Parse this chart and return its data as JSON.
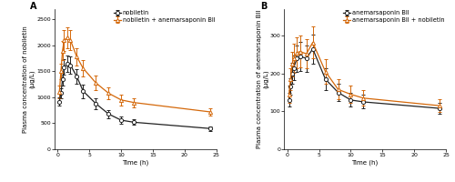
{
  "panel_A": {
    "title": "A",
    "ylabel": "Plasma concentration of nobiletin\n(μg/L)",
    "xlabel": "Time (h)",
    "xlim": [
      -0.5,
      25
    ],
    "ylim": [
      0,
      2700
    ],
    "yticks": [
      0,
      500,
      1000,
      1500,
      2000,
      2500
    ],
    "xticks": [
      0,
      5,
      10,
      15,
      20,
      25
    ],
    "series": {
      "nobiletin": {
        "label": "nobiletin",
        "color": "#222222",
        "marker": "o",
        "x": [
          0.25,
          0.5,
          0.75,
          1.0,
          1.5,
          2.0,
          3.0,
          4.0,
          6.0,
          8.0,
          10.0,
          12.0,
          24.0
        ],
        "y": [
          920,
          1080,
          1350,
          1580,
          1650,
          1620,
          1400,
          1120,
          880,
          680,
          560,
          520,
          400
        ],
        "yerr": [
          80,
          100,
          130,
          150,
          160,
          160,
          140,
          130,
          100,
          80,
          65,
          55,
          45
        ]
      },
      "nobiletin_combo": {
        "label": "nobiletin + anemarsaponin BII",
        "color": "#D4680A",
        "marker": "^",
        "x": [
          0.25,
          0.5,
          0.75,
          1.0,
          1.5,
          2.0,
          3.0,
          4.0,
          6.0,
          8.0,
          10.0,
          12.0,
          24.0
        ],
        "y": [
          1100,
          1500,
          1900,
          2100,
          2150,
          2100,
          1780,
          1560,
          1280,
          1080,
          950,
          900,
          720
        ],
        "yerr": [
          120,
          150,
          180,
          200,
          200,
          190,
          170,
          160,
          140,
          120,
          105,
          90,
          75
        ]
      }
    }
  },
  "panel_B": {
    "title": "B",
    "ylabel": "Plasma concentration of anemarsaponin BII\n(μg/L)",
    "xlabel": "Time (h)",
    "xlim": [
      -0.5,
      25
    ],
    "ylim": [
      0,
      370
    ],
    "yticks": [
      0,
      100,
      200,
      300
    ],
    "xticks": [
      0,
      5,
      10,
      15,
      20,
      25
    ],
    "series": {
      "anemarsaponin": {
        "label": "anemarsaponin BII",
        "color": "#222222",
        "marker": "o",
        "x": [
          0.25,
          0.5,
          0.75,
          1.0,
          1.5,
          2.0,
          3.0,
          4.0,
          6.0,
          8.0,
          10.0,
          12.0,
          24.0
        ],
        "y": [
          130,
          165,
          200,
          215,
          240,
          245,
          240,
          265,
          185,
          150,
          130,
          125,
          108
        ],
        "yerr": [
          18,
          22,
          28,
          32,
          35,
          38,
          35,
          38,
          28,
          22,
          18,
          18,
          14
        ]
      },
      "anemarsaponin_combo": {
        "label": "anemarsaponin BII + nobiletin",
        "color": "#D4680A",
        "marker": "^",
        "x": [
          0.25,
          0.5,
          0.75,
          1.0,
          1.5,
          2.0,
          3.0,
          4.0,
          6.0,
          8.0,
          10.0,
          12.0,
          24.0
        ],
        "y": [
          145,
          185,
          225,
          240,
          255,
          258,
          252,
          282,
          205,
          158,
          145,
          135,
          115
        ],
        "yerr": [
          22,
          28,
          32,
          38,
          40,
          42,
          38,
          42,
          32,
          26,
          22,
          20,
          16
        ]
      }
    }
  },
  "bg_color": "#ffffff",
  "linewidth": 0.9,
  "markersize": 3.0,
  "capsize": 1.5,
  "elinewidth": 0.7,
  "fontsize_label": 5.0,
  "fontsize_tick": 4.5,
  "fontsize_legend": 4.8,
  "fontsize_title": 7.0
}
